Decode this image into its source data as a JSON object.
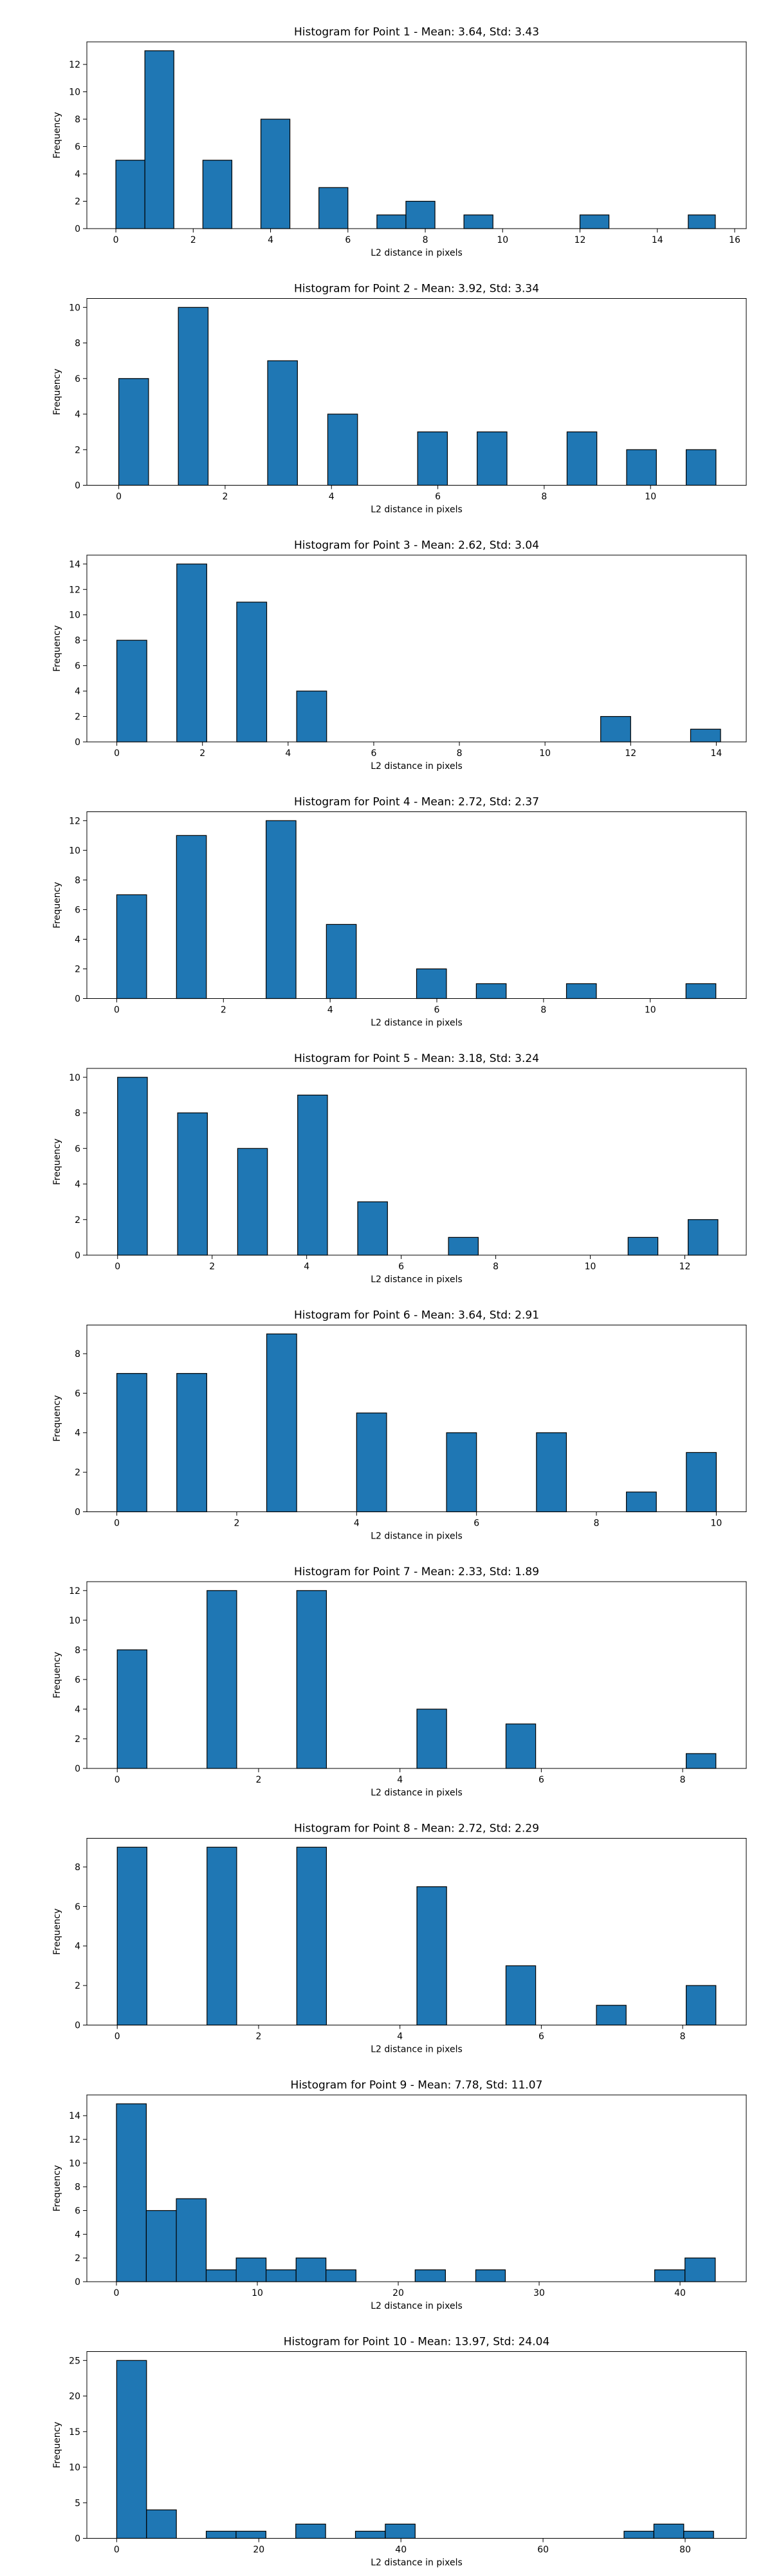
{
  "axis_color": "#000000",
  "bar_color": "#1f77b4",
  "bar_edge_color": "#000000",
  "chart_data": [
    {
      "type": "bar",
      "title": "Histogram for Point 1 - Mean: 3.64, Std: 3.43",
      "xlabel": "L2 distance in pixels",
      "ylabel": "Frequency",
      "xlim": [
        -0.75,
        16.3
      ],
      "ylim": [
        0,
        13.65
      ],
      "xticks": [
        0,
        2,
        4,
        6,
        8,
        10,
        12,
        14,
        16
      ],
      "yticks": [
        0,
        2,
        4,
        6,
        8,
        10,
        12
      ],
      "bins": [
        [
          0,
          0.75,
          5
        ],
        [
          0.75,
          1.5,
          13
        ],
        [
          2.25,
          3.0,
          5
        ],
        [
          3.75,
          4.5,
          8
        ],
        [
          5.25,
          6.0,
          3
        ],
        [
          6.75,
          7.5,
          1
        ],
        [
          7.5,
          8.25,
          2
        ],
        [
          9.0,
          9.75,
          1
        ],
        [
          12.0,
          12.75,
          1
        ],
        [
          14.8,
          15.5,
          1
        ]
      ]
    },
    {
      "type": "bar",
      "title": "Histogram for Point 2 - Mean: 3.92, Std: 3.34",
      "xlabel": "L2 distance in pixels",
      "ylabel": "Frequency",
      "xlim": [
        -0.6,
        11.8
      ],
      "ylim": [
        0,
        10.5
      ],
      "xticks": [
        0,
        2,
        4,
        6,
        8,
        10
      ],
      "yticks": [
        0,
        2,
        4,
        6,
        8,
        10
      ],
      "bins": [
        [
          0,
          0.56,
          6
        ],
        [
          1.12,
          1.68,
          10
        ],
        [
          2.8,
          3.36,
          7
        ],
        [
          3.93,
          4.49,
          4
        ],
        [
          5.62,
          6.18,
          3
        ],
        [
          6.74,
          7.3,
          3
        ],
        [
          8.43,
          8.99,
          3
        ],
        [
          9.55,
          10.11,
          2
        ],
        [
          10.67,
          11.23,
          2
        ]
      ]
    },
    {
      "type": "bar",
      "title": "Histogram for Point 3 - Mean: 2.62, Std: 3.04",
      "xlabel": "L2 distance in pixels",
      "ylabel": "Frequency",
      "xlim": [
        -0.7,
        14.7
      ],
      "ylim": [
        0,
        14.7
      ],
      "xticks": [
        0,
        2,
        4,
        6,
        8,
        10,
        12,
        14
      ],
      "yticks": [
        0,
        2,
        4,
        6,
        8,
        10,
        12,
        14
      ],
      "bins": [
        [
          0,
          0.7,
          8
        ],
        [
          1.4,
          2.1,
          14
        ],
        [
          2.8,
          3.5,
          11
        ],
        [
          4.2,
          4.9,
          4
        ],
        [
          11.3,
          12.0,
          2
        ],
        [
          13.4,
          14.1,
          1
        ]
      ]
    },
    {
      "type": "bar",
      "title": "Histogram for Point 4 - Mean: 2.72, Std: 2.37",
      "xlabel": "L2 distance in pixels",
      "ylabel": "Frequency",
      "xlim": [
        -0.56,
        11.8
      ],
      "ylim": [
        0,
        12.6
      ],
      "xticks": [
        0,
        2,
        4,
        6,
        8,
        10
      ],
      "yticks": [
        0,
        2,
        4,
        6,
        8,
        10,
        12
      ],
      "bins": [
        [
          0,
          0.56,
          7
        ],
        [
          1.12,
          1.68,
          11
        ],
        [
          2.8,
          3.36,
          12
        ],
        [
          3.93,
          4.49,
          5
        ],
        [
          5.62,
          6.18,
          2
        ],
        [
          6.74,
          7.3,
          1
        ],
        [
          8.43,
          8.99,
          1
        ],
        [
          10.67,
          11.23,
          1
        ]
      ]
    },
    {
      "type": "bar",
      "title": "Histogram for Point 5 - Mean: 3.18, Std: 3.24",
      "xlabel": "L2 distance in pixels",
      "ylabel": "Frequency",
      "xlim": [
        -0.65,
        13.3
      ],
      "ylim": [
        0,
        10.5
      ],
      "xticks": [
        0,
        2,
        4,
        6,
        8,
        10,
        12
      ],
      "yticks": [
        0,
        2,
        4,
        6,
        8,
        10
      ],
      "bins": [
        [
          0,
          0.63,
          10
        ],
        [
          1.27,
          1.9,
          8
        ],
        [
          2.54,
          3.17,
          6
        ],
        [
          3.81,
          4.44,
          9
        ],
        [
          5.08,
          5.71,
          3
        ],
        [
          7.0,
          7.63,
          1
        ],
        [
          10.8,
          11.43,
          1
        ],
        [
          12.07,
          12.7,
          2
        ]
      ]
    },
    {
      "type": "bar",
      "title": "Histogram for Point 6 - Mean: 3.64, Std: 2.91",
      "xlabel": "L2 distance in pixels",
      "ylabel": "Frequency",
      "xlim": [
        -0.5,
        10.5
      ],
      "ylim": [
        0,
        9.45
      ],
      "xticks": [
        0,
        2,
        4,
        6,
        8,
        10
      ],
      "yticks": [
        0,
        2,
        4,
        6,
        8
      ],
      "bins": [
        [
          0,
          0.5,
          7
        ],
        [
          1.0,
          1.5,
          7
        ],
        [
          2.5,
          3.0,
          9
        ],
        [
          4.0,
          4.5,
          5
        ],
        [
          5.5,
          6.0,
          4
        ],
        [
          7.0,
          7.5,
          4
        ],
        [
          8.5,
          9.0,
          1
        ],
        [
          9.5,
          10.0,
          3
        ]
      ]
    },
    {
      "type": "bar",
      "title": "Histogram for Point 7 - Mean: 2.33, Std: 1.89",
      "xlabel": "L2 distance in pixels",
      "ylabel": "Frequency",
      "xlim": [
        -0.43,
        8.9
      ],
      "ylim": [
        0,
        12.6
      ],
      "xticks": [
        0,
        2,
        4,
        6,
        8
      ],
      "yticks": [
        0,
        2,
        4,
        6,
        8,
        10,
        12
      ],
      "bins": [
        [
          0,
          0.42,
          8
        ],
        [
          1.27,
          1.69,
          12
        ],
        [
          2.54,
          2.96,
          12
        ],
        [
          4.24,
          4.66,
          4
        ],
        [
          5.5,
          5.92,
          3
        ],
        [
          8.05,
          8.47,
          1
        ]
      ]
    },
    {
      "type": "bar",
      "title": "Histogram for Point 8 - Mean: 2.72, Std: 2.29",
      "xlabel": "L2 distance in pixels",
      "ylabel": "Frequency",
      "xlim": [
        -0.43,
        8.9
      ],
      "ylim": [
        0,
        9.45
      ],
      "xticks": [
        0,
        2,
        4,
        6,
        8
      ],
      "yticks": [
        0,
        2,
        4,
        6,
        8
      ],
      "bins": [
        [
          0,
          0.42,
          9
        ],
        [
          1.27,
          1.69,
          9
        ],
        [
          2.54,
          2.96,
          9
        ],
        [
          4.24,
          4.66,
          7
        ],
        [
          5.5,
          5.92,
          3
        ],
        [
          6.78,
          7.2,
          1
        ],
        [
          8.05,
          8.47,
          2
        ]
      ]
    },
    {
      "type": "bar",
      "title": "Histogram for Point 9 - Mean: 7.78, Std: 11.07",
      "xlabel": "L2 distance in pixels",
      "ylabel": "Frequency",
      "xlim": [
        -2.1,
        44.7
      ],
      "ylim": [
        0,
        15.75
      ],
      "xticks": [
        0,
        10,
        20,
        30,
        40
      ],
      "yticks": [
        0,
        2,
        4,
        6,
        8,
        10,
        12,
        14
      ],
      "bins": [
        [
          0,
          2.12,
          15
        ],
        [
          2.12,
          4.25,
          6
        ],
        [
          4.25,
          6.37,
          7
        ],
        [
          6.37,
          8.5,
          1
        ],
        [
          8.5,
          10.62,
          2
        ],
        [
          10.62,
          12.75,
          1
        ],
        [
          12.75,
          14.87,
          2
        ],
        [
          14.87,
          17.0,
          1
        ],
        [
          21.2,
          23.35,
          1
        ],
        [
          25.5,
          27.6,
          1
        ],
        [
          38.2,
          40.35,
          1
        ],
        [
          40.35,
          42.5,
          2
        ]
      ]
    },
    {
      "type": "bar",
      "title": "Histogram for Point 10 - Mean: 13.97, Std: 24.04",
      "xlabel": "L2 distance in pixels",
      "ylabel": "Frequency",
      "xlim": [
        -4.2,
        88.6
      ],
      "ylim": [
        0,
        26.25
      ],
      "xticks": [
        0,
        20,
        40,
        60,
        80
      ],
      "yticks": [
        0,
        5,
        10,
        15,
        20,
        25
      ],
      "bins": [
        [
          0,
          4.2,
          25
        ],
        [
          4.2,
          8.4,
          4
        ],
        [
          12.6,
          16.8,
          1
        ],
        [
          16.8,
          21.0,
          1
        ],
        [
          25.2,
          29.4,
          2
        ],
        [
          33.6,
          37.8,
          1
        ],
        [
          37.8,
          42.0,
          2
        ],
        [
          71.4,
          75.6,
          1
        ],
        [
          75.6,
          79.8,
          2
        ],
        [
          79.8,
          84.0,
          1
        ]
      ]
    }
  ]
}
